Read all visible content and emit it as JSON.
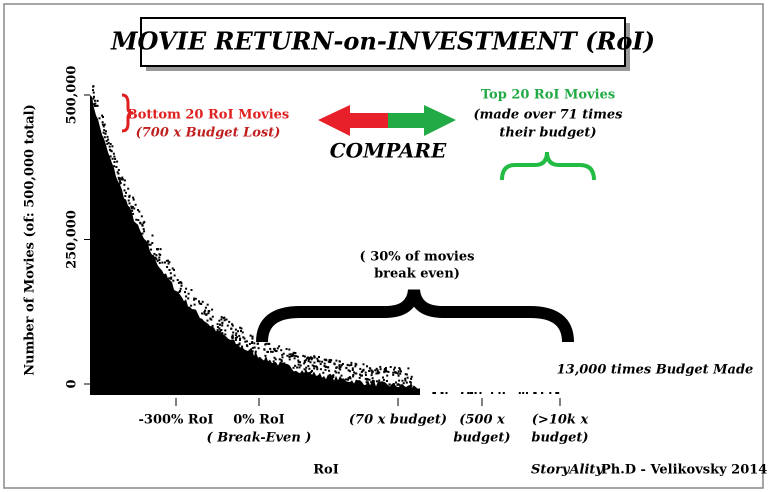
{
  "chart_data": {
    "type": "density",
    "title": "MOVIE RETURN-on-INVESTMENT (RoI)",
    "y_label": "Number of Movies (of: 500,000 total)",
    "x_label": "RoI",
    "ylim": [
      0,
      500000
    ],
    "yticks": [
      0,
      {
        "value": 250000,
        "label": "250,000"
      },
      {
        "value": 500000,
        "label": "500,000"
      }
    ],
    "x_tick_labels": [
      [
        "-300% RoI"
      ],
      [
        "0% RoI",
        "( Break-Even )"
      ],
      [
        "(70 x budget)"
      ],
      [
        "(500 x",
        "budget)"
      ],
      [
        "(>10k x",
        "budget)"
      ]
    ],
    "annotations": {
      "bottom_title": "Bottom 20 RoI Movies",
      "bottom_sub": "(700 x Budget Lost)",
      "compare": "COMPARE",
      "top_title": "Top 20 RoI Movies",
      "top_sub": [
        "(made over 71 times",
        "their budget)"
      ],
      "break_even": [
        "( 30% of movies",
        "break even)"
      ],
      "max": "13,000 times Budget Made"
    },
    "credit": [
      "StoryAlity",
      "Ph.D - Velikovsky 2014"
    ]
  }
}
